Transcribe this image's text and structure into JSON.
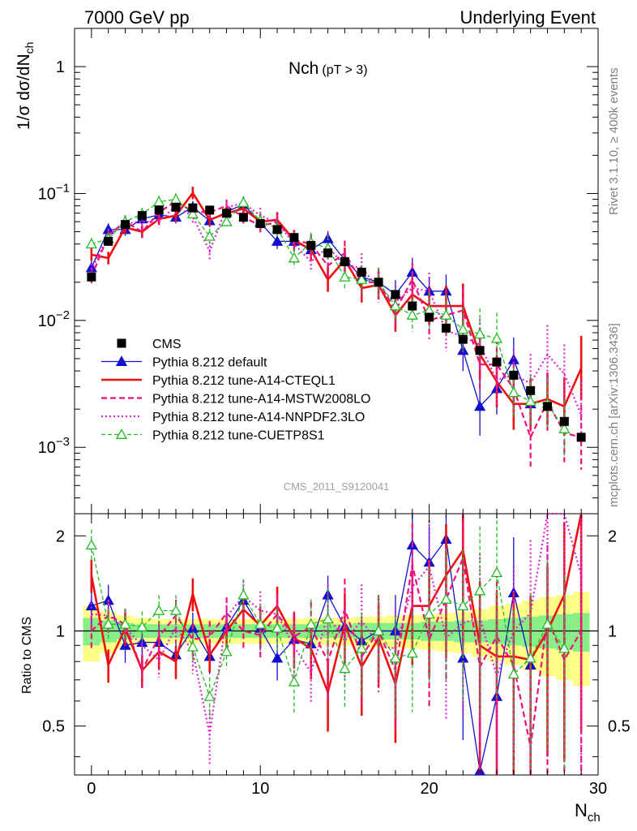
{
  "header": {
    "left": "7000 GeV pp",
    "right": "Underlying Event"
  },
  "side_labels": {
    "rivet": "Rivet 3.1.10, ≥ 400k events",
    "mcplots": "mcplots.cern.ch [arXiv:1306.3436]"
  },
  "plot_title": {
    "main": "Nch",
    "sub": "(pT >  3)"
  },
  "analysis_tag": "CMS_2011_S9120041",
  "axes": {
    "ylabel_main": "1/σ dσ/dN",
    "ylabel_main_sub": "ch",
    "ylabel_ratio": "Ratio to CMS",
    "xlabel": "N",
    "xlabel_sub": "ch"
  },
  "chart_data": {
    "type": "scatter",
    "x_range": [
      -1,
      30
    ],
    "main_y_range": [
      0.0003,
      2
    ],
    "main_y_scale": "log",
    "ratio_y_range": [
      0.35,
      2.35
    ],
    "ratio_y_scale": "log",
    "x_ticks": [
      "0",
      "10",
      "20",
      "30"
    ],
    "main_y_tick_labels": [
      {
        "value": 1,
        "base": "1",
        "exp": ""
      },
      {
        "value": 0.1,
        "base": "10",
        "exp": "−1"
      },
      {
        "value": 0.01,
        "base": "10",
        "exp": "−2"
      },
      {
        "value": 0.001,
        "base": "10",
        "exp": "−3"
      }
    ],
    "ratio_y_tick_labels": [
      {
        "value": 2,
        "label": "2"
      },
      {
        "value": 1,
        "label": "1"
      },
      {
        "value": 0.5,
        "label": "0.5"
      }
    ],
    "legend_position": "bottom-left",
    "data": {
      "name": "CMS",
      "color": "#000000",
      "x": [
        0,
        1,
        2,
        3,
        4,
        5,
        6,
        7,
        8,
        9,
        10,
        11,
        12,
        13,
        14,
        15,
        16,
        17,
        18,
        19,
        20,
        21,
        22,
        23,
        24,
        25,
        26,
        27,
        28,
        29
      ],
      "y": [
        0.022,
        0.042,
        0.057,
        0.067,
        0.074,
        0.078,
        0.077,
        0.074,
        0.07,
        0.065,
        0.058,
        0.052,
        0.045,
        0.039,
        0.034,
        0.029,
        0.024,
        0.02,
        0.016,
        0.013,
        0.0106,
        0.0087,
        0.0071,
        0.0058,
        0.0047,
        0.0037,
        0.0028,
        0.0021,
        0.0016,
        0.0012
      ]
    },
    "series": [
      {
        "name": "Pythia 8.212 default",
        "color": "#1010cc",
        "dash": "",
        "width": 1.3,
        "marker": "triangle-filled",
        "x": [
          0,
          1,
          2,
          3,
          4,
          5,
          6,
          7,
          8,
          9,
          10,
          11,
          12,
          13,
          14,
          15,
          16,
          17,
          18,
          19,
          20,
          21,
          22,
          23,
          24,
          25,
          26
        ],
        "y": [
          0.026,
          0.052,
          0.052,
          0.063,
          0.068,
          0.065,
          0.078,
          0.061,
          0.072,
          0.082,
          0.059,
          0.042,
          0.042,
          0.036,
          0.044,
          0.03,
          0.022,
          0.02,
          0.016,
          0.024,
          0.017,
          0.017,
          0.0058,
          0.0021,
          0.0029,
          0.0049,
          0.0022
        ],
        "err": [
          0.15,
          0.12,
          0.12,
          0.12,
          0.12,
          0.12,
          0.12,
          0.12,
          0.12,
          0.12,
          0.15,
          0.15,
          0.15,
          0.15,
          0.15,
          0.2,
          0.2,
          0.25,
          0.3,
          0.3,
          0.3,
          0.35,
          0.45,
          0.7,
          0.6,
          0.5,
          0.6
        ],
        "ratio": [
          1.2,
          1.25,
          0.9,
          0.92,
          0.92,
          0.84,
          1.02,
          0.83,
          1.03,
          1.25,
          1.02,
          0.82,
          0.94,
          0.91,
          1.3,
          1.03,
          0.93,
          1.0,
          1.0,
          1.87,
          1.65,
          1.95,
          0.82,
          0.36,
          0.62,
          1.32,
          0.78
        ],
        "ratio_err": [
          0.15,
          0.12,
          0.12,
          0.12,
          0.12,
          0.12,
          0.12,
          0.12,
          0.12,
          0.12,
          0.15,
          0.15,
          0.15,
          0.15,
          0.15,
          0.2,
          0.2,
          0.25,
          0.3,
          0.3,
          0.3,
          0.35,
          0.45,
          0.7,
          0.6,
          0.5,
          0.6
        ]
      },
      {
        "name": "Pythia 8.212 tune-A14-CTEQL1",
        "color": "#ee1111",
        "dash": "",
        "width": 2.6,
        "marker": "none",
        "x": [
          0,
          1,
          2,
          3,
          4,
          5,
          6,
          7,
          8,
          9,
          10,
          11,
          12,
          13,
          14,
          15,
          16,
          17,
          18,
          19,
          20,
          21,
          22,
          23,
          24,
          25,
          26,
          27,
          28,
          29
        ],
        "y": [
          0.033,
          0.031,
          0.054,
          0.05,
          0.063,
          0.067,
          0.101,
          0.062,
          0.07,
          0.076,
          0.06,
          0.062,
          0.043,
          0.036,
          0.021,
          0.03,
          0.018,
          0.019,
          0.011,
          0.016,
          0.013,
          0.013,
          0.013,
          0.0054,
          0.0033,
          0.0022,
          0.0022,
          0.0024,
          0.0021,
          0.0042
        ],
        "err": [
          0.12,
          0.12,
          0.12,
          0.12,
          0.12,
          0.12,
          0.12,
          0.12,
          0.12,
          0.12,
          0.15,
          0.15,
          0.2,
          0.2,
          0.25,
          0.25,
          0.3,
          0.3,
          0.35,
          0.35,
          0.4,
          0.45,
          0.5,
          0.6,
          0.6,
          0.6,
          0.6,
          0.6,
          0.7,
          0.8
        ],
        "ratio": [
          1.5,
          0.78,
          1.02,
          0.75,
          0.86,
          0.8,
          1.31,
          0.84,
          1.0,
          1.17,
          1.04,
          1.2,
          0.95,
          0.88,
          0.64,
          1.05,
          0.77,
          0.95,
          0.68,
          1.2,
          1.2,
          1.5,
          1.8,
          0.9,
          0.83,
          0.83,
          0.81,
          1.0,
          1.3,
          2.4
        ],
        "ratio_err": [
          0.12,
          0.12,
          0.12,
          0.12,
          0.12,
          0.12,
          0.12,
          0.12,
          0.12,
          0.12,
          0.15,
          0.15,
          0.2,
          0.2,
          0.25,
          0.25,
          0.3,
          0.3,
          0.35,
          0.35,
          0.4,
          0.45,
          0.5,
          0.6,
          0.6,
          0.6,
          0.6,
          0.6,
          0.7,
          0.8
        ]
      },
      {
        "name": "Pythia 8.212 tune-A14-MSTW2008LO",
        "color": "#ee1177",
        "dash": "7,4",
        "width": 2.2,
        "marker": "none",
        "x": [
          0,
          1,
          2,
          3,
          4,
          5,
          6,
          7,
          8,
          9,
          10,
          11,
          12,
          13,
          14,
          15,
          16,
          17,
          18,
          19,
          20,
          21,
          22,
          23,
          24,
          25,
          26,
          27,
          28,
          29
        ],
        "y": [
          0.022,
          0.047,
          0.06,
          0.05,
          0.071,
          0.087,
          0.072,
          0.071,
          0.08,
          0.065,
          0.056,
          0.059,
          0.043,
          0.04,
          0.027,
          0.034,
          0.02,
          0.02,
          0.012,
          0.021,
          0.01,
          0.011,
          0.012,
          0.0045,
          0.0045,
          0.0029,
          0.0012,
          0.0023,
          0.0013,
          0.0012
        ],
        "err": [
          0.12,
          0.12,
          0.12,
          0.12,
          0.12,
          0.12,
          0.12,
          0.12,
          0.12,
          0.12,
          0.15,
          0.15,
          0.2,
          0.2,
          0.25,
          0.25,
          0.3,
          0.3,
          0.35,
          0.35,
          0.4,
          0.45,
          0.5,
          0.6,
          0.6,
          0.6,
          0.7,
          0.7,
          0.7,
          0.8
        ],
        "ratio": [
          1.0,
          1.12,
          1.05,
          0.75,
          0.96,
          1.12,
          0.94,
          0.96,
          1.14,
          1.0,
          0.97,
          1.13,
          0.96,
          1.03,
          0.8,
          1.17,
          0.83,
          1.0,
          0.75,
          1.62,
          0.94,
          1.26,
          1.7,
          0.77,
          0.96,
          0.78,
          0.43,
          1.1,
          0.81,
          1.0
        ],
        "ratio_err": [
          0.12,
          0.12,
          0.12,
          0.12,
          0.12,
          0.12,
          0.12,
          0.12,
          0.12,
          0.12,
          0.15,
          0.15,
          0.2,
          0.2,
          0.25,
          0.25,
          0.3,
          0.3,
          0.35,
          0.35,
          0.4,
          0.45,
          0.5,
          0.6,
          0.6,
          0.6,
          0.7,
          0.7,
          0.7,
          0.8
        ]
      },
      {
        "name": "Pythia 8.212 tune-A14-NNPDF2.3LO",
        "color": "#dd22cc",
        "dash": "2,3",
        "width": 2.2,
        "marker": "none",
        "x": [
          0,
          1,
          2,
          3,
          4,
          5,
          6,
          7,
          8,
          9,
          10,
          11,
          12,
          13,
          14,
          15,
          16,
          17,
          18,
          19,
          20,
          21,
          22,
          23,
          24,
          25,
          26,
          27,
          28,
          29
        ],
        "y": [
          0.025,
          0.047,
          0.058,
          0.06,
          0.06,
          0.08,
          0.066,
          0.035,
          0.078,
          0.084,
          0.067,
          0.059,
          0.04,
          0.029,
          0.038,
          0.027,
          0.026,
          0.018,
          0.014,
          0.018,
          0.017,
          0.0083,
          0.0075,
          0.0064,
          0.0034,
          0.0037,
          0.0032,
          0.0054,
          0.0038,
          0.0018
        ],
        "err": [
          0.12,
          0.12,
          0.12,
          0.12,
          0.12,
          0.12,
          0.15,
          0.2,
          0.12,
          0.12,
          0.15,
          0.15,
          0.2,
          0.2,
          0.25,
          0.25,
          0.3,
          0.3,
          0.35,
          0.35,
          0.4,
          0.45,
          0.5,
          0.6,
          0.6,
          0.6,
          0.7,
          0.7,
          0.7,
          0.8
        ],
        "ratio": [
          1.13,
          1.12,
          1.02,
          0.9,
          0.81,
          1.03,
          0.86,
          0.47,
          1.11,
          1.29,
          1.16,
          1.13,
          0.89,
          0.74,
          1.12,
          0.93,
          1.08,
          0.9,
          0.88,
          1.38,
          1.6,
          0.95,
          1.06,
          1.1,
          0.72,
          1.0,
          1.14,
          2.57,
          2.38,
          1.5
        ],
        "ratio_err": [
          0.12,
          0.12,
          0.12,
          0.12,
          0.12,
          0.12,
          0.15,
          0.2,
          0.12,
          0.12,
          0.15,
          0.15,
          0.2,
          0.2,
          0.25,
          0.25,
          0.3,
          0.3,
          0.35,
          0.35,
          0.4,
          0.45,
          0.5,
          0.6,
          0.6,
          0.6,
          0.7,
          0.7,
          0.7,
          0.8
        ]
      },
      {
        "name": "Pythia 8.212 tune-CUETP8S1",
        "color": "#22bb22",
        "dash": "5,3",
        "width": 1.3,
        "marker": "triangle-open",
        "x": [
          0,
          1,
          2,
          3,
          4,
          5,
          6,
          7,
          8,
          9,
          10,
          11,
          12,
          13,
          14,
          15,
          16,
          17,
          18,
          19,
          20,
          21,
          22,
          23,
          24,
          25,
          26,
          27,
          28
        ],
        "y": [
          0.04,
          0.044,
          0.06,
          0.069,
          0.086,
          0.09,
          0.069,
          0.046,
          0.06,
          0.085,
          0.061,
          0.053,
          0.031,
          0.041,
          0.037,
          0.022,
          0.021,
          0.02,
          0.013,
          0.011,
          0.012,
          0.011,
          0.0085,
          0.0078,
          0.0072,
          0.0027,
          0.0023,
          0.0022,
          0.0014
        ],
        "err": [
          0.12,
          0.12,
          0.12,
          0.12,
          0.12,
          0.12,
          0.12,
          0.15,
          0.12,
          0.12,
          0.15,
          0.15,
          0.2,
          0.2,
          0.25,
          0.25,
          0.3,
          0.3,
          0.35,
          0.35,
          0.4,
          0.45,
          0.5,
          0.6,
          0.6,
          0.6,
          0.6,
          0.6,
          0.7
        ],
        "ratio": [
          1.87,
          1.05,
          1.05,
          1.03,
          1.16,
          1.16,
          0.89,
          0.62,
          0.86,
          1.3,
          1.05,
          1.02,
          0.69,
          1.05,
          1.09,
          0.76,
          0.88,
          1.0,
          0.82,
          0.85,
          1.13,
          1.26,
          1.2,
          1.34,
          1.53,
          0.73,
          0.82,
          1.05,
          0.88
        ],
        "ratio_err": [
          0.12,
          0.12,
          0.12,
          0.12,
          0.12,
          0.12,
          0.12,
          0.15,
          0.12,
          0.12,
          0.15,
          0.15,
          0.2,
          0.2,
          0.25,
          0.25,
          0.3,
          0.3,
          0.35,
          0.35,
          0.4,
          0.45,
          0.5,
          0.6,
          0.6,
          0.6,
          0.6,
          0.6,
          0.7
        ]
      }
    ],
    "uncertainty_bands": [
      {
        "level": "outer",
        "color": "#ffff88",
        "x": [
          0,
          1,
          2,
          3,
          4,
          5,
          6,
          7,
          8,
          9,
          10,
          11,
          12,
          13,
          14,
          15,
          16,
          17,
          18,
          19,
          20,
          21,
          22,
          23,
          24,
          25,
          26,
          27,
          28,
          29
        ],
        "half_width": [
          0.2,
          0.15,
          0.12,
          0.1,
          0.09,
          0.09,
          0.09,
          0.09,
          0.09,
          0.09,
          0.09,
          0.09,
          0.09,
          0.1,
          0.1,
          0.1,
          0.11,
          0.11,
          0.12,
          0.12,
          0.13,
          0.14,
          0.15,
          0.17,
          0.2,
          0.22,
          0.25,
          0.28,
          0.3,
          0.33
        ]
      },
      {
        "level": "inner",
        "color": "#88ee88",
        "x": [
          0,
          1,
          2,
          3,
          4,
          5,
          6,
          7,
          8,
          9,
          10,
          11,
          12,
          13,
          14,
          15,
          16,
          17,
          18,
          19,
          20,
          21,
          22,
          23,
          24,
          25,
          26,
          27,
          28,
          29
        ],
        "half_width": [
          0.1,
          0.08,
          0.06,
          0.05,
          0.05,
          0.05,
          0.05,
          0.05,
          0.05,
          0.05,
          0.05,
          0.05,
          0.05,
          0.05,
          0.05,
          0.05,
          0.06,
          0.06,
          0.06,
          0.06,
          0.07,
          0.07,
          0.08,
          0.08,
          0.09,
          0.1,
          0.11,
          0.12,
          0.13,
          0.14
        ]
      }
    ]
  }
}
